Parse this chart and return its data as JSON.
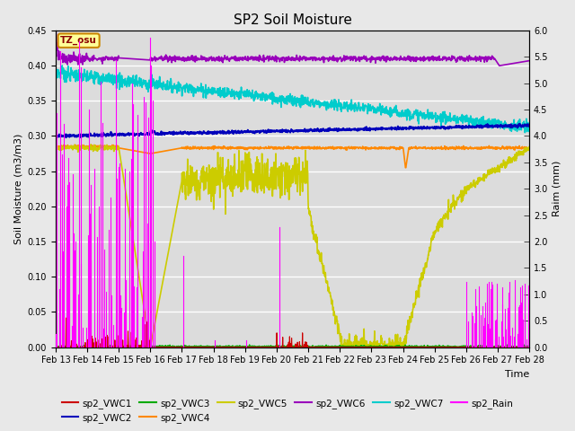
{
  "title": "SP2 Soil Moisture",
  "xlabel": "Time",
  "ylabel_left": "Soil Moisture (m3/m3)",
  "ylabel_right": "Raim (mm)",
  "ylim_left": [
    0,
    0.45
  ],
  "ylim_right": [
    0,
    6.0
  ],
  "yticks_left": [
    0.0,
    0.05,
    0.1,
    0.15,
    0.2,
    0.25,
    0.3,
    0.35,
    0.4,
    0.45
  ],
  "yticks_right": [
    0.0,
    0.5,
    1.0,
    1.5,
    2.0,
    2.5,
    3.0,
    3.5,
    4.0,
    4.5,
    5.0,
    5.5,
    6.0
  ],
  "x_start": 13,
  "x_end": 28,
  "x_ticks": [
    13,
    14,
    15,
    16,
    17,
    18,
    19,
    20,
    21,
    22,
    23,
    24,
    25,
    26,
    27,
    28
  ],
  "x_tick_labels": [
    "Feb 13",
    "Feb 14",
    "Feb 15",
    "Feb 16",
    "Feb 17",
    "Feb 18",
    "Feb 19",
    "Feb 20",
    "Feb 21",
    "Feb 22",
    "Feb 23",
    "Feb 24",
    "Feb 25",
    "Feb 26",
    "Feb 27",
    "Feb 28"
  ],
  "background_color": "#e8e8e8",
  "plot_bg_color": "#dcdcdc",
  "colors": {
    "sp2_VWC1": "#cc0000",
    "sp2_VWC2": "#0000bb",
    "sp2_VWC3": "#00aa00",
    "sp2_VWC4": "#ff8800",
    "sp2_VWC5": "#cccc00",
    "sp2_VWC6": "#9900bb",
    "sp2_VWC7": "#00cccc",
    "sp2_Rain": "#ff00ff"
  },
  "tz_label": "TZ_osu",
  "title_fontsize": 11,
  "figsize": [
    6.4,
    4.8
  ],
  "dpi": 100
}
